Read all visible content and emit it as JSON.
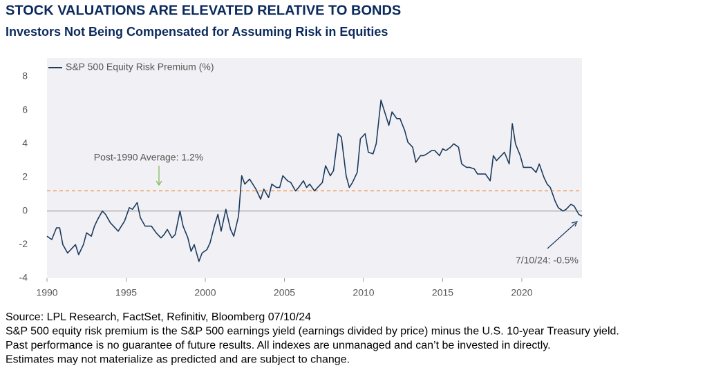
{
  "chart_data": {
    "type": "line",
    "title": "STOCK VALUATIONS ARE ELEVATED RELATIVE TO BONDS",
    "subtitle": "Investors Not Being Compensated for Assuming Risk in Equities",
    "x": [
      1990.0,
      1990.3,
      1990.6,
      1990.8,
      1991.0,
      1991.3,
      1991.6,
      1991.8,
      1992.0,
      1992.3,
      1992.5,
      1992.8,
      1993.0,
      1993.2,
      1993.5,
      1993.7,
      1994.0,
      1994.2,
      1994.5,
      1994.7,
      1994.9,
      1995.2,
      1995.4,
      1995.7,
      1995.9,
      1996.2,
      1996.4,
      1996.6,
      1996.9,
      1997.2,
      1997.4,
      1997.6,
      1997.9,
      1998.1,
      1998.4,
      1998.6,
      1998.9,
      1999.1,
      1999.3,
      1999.6,
      1999.8,
      2000.1,
      2000.3,
      2000.6,
      2000.8,
      2001.0,
      2001.3,
      2001.6,
      2001.8,
      2002.1,
      2002.3,
      2002.5,
      2002.8,
      2003.0,
      2003.2,
      2003.5,
      2003.7,
      2004.0,
      2004.2,
      2004.5,
      2004.7,
      2004.9,
      2005.2,
      2005.4,
      2005.7,
      2005.9,
      2006.2,
      2006.4,
      2006.6,
      2006.9,
      2007.1,
      2007.4,
      2007.6,
      2007.9,
      2008.1,
      2008.4,
      2008.6,
      2008.9,
      2009.1,
      2009.3,
      2009.6,
      2009.8,
      2010.1,
      2010.3,
      2010.6,
      2010.8,
      2011.1,
      2011.3,
      2011.6,
      2011.8,
      2012.1,
      2012.3,
      2012.6,
      2012.8,
      2013.1,
      2013.3,
      2013.6,
      2013.8,
      2014.0,
      2014.3,
      2014.5,
      2014.8,
      2015.0,
      2015.2,
      2015.5,
      2015.7,
      2016.0,
      2016.2,
      2016.5,
      2016.7,
      2017.0,
      2017.2,
      2017.5,
      2017.7,
      2018.0,
      2018.2,
      2018.4,
      2018.7,
      2018.9,
      2019.2,
      2019.4,
      2019.6,
      2019.9,
      2020.1,
      2020.4,
      2020.6,
      2020.9,
      2021.1,
      2021.4,
      2021.6,
      2021.8,
      2022.1,
      2022.3,
      2022.6,
      2022.8,
      2023.1,
      2023.3,
      2023.6,
      2023.8
    ],
    "series": [
      {
        "name": "S&P 500 Equity Risk Premium (%)",
        "color": "#1b3a5c",
        "values": [
          -1.5,
          -1.7,
          -1.0,
          -1.0,
          -2.0,
          -2.5,
          -2.2,
          -2.0,
          -2.6,
          -2.0,
          -1.3,
          -1.5,
          -0.9,
          -0.5,
          0.0,
          -0.2,
          -0.7,
          -0.9,
          -1.2,
          -0.9,
          -0.6,
          0.2,
          0.1,
          0.5,
          -0.4,
          -0.9,
          -0.9,
          -0.9,
          -1.3,
          -1.6,
          -1.4,
          -1.1,
          -1.6,
          -1.4,
          0.0,
          -0.9,
          -1.6,
          -2.4,
          -2.0,
          -3.0,
          -2.5,
          -2.3,
          -1.9,
          -0.8,
          -0.2,
          -1.2,
          0.1,
          -1.1,
          -1.5,
          -0.3,
          2.1,
          1.6,
          1.9,
          1.6,
          1.3,
          0.7,
          1.3,
          0.8,
          1.6,
          1.4,
          1.4,
          2.1,
          1.8,
          1.7,
          1.2,
          1.4,
          1.8,
          1.4,
          1.6,
          1.2,
          1.4,
          1.7,
          2.7,
          2.1,
          2.4,
          4.6,
          4.4,
          2.1,
          1.4,
          1.7,
          2.3,
          4.3,
          4.6,
          3.5,
          3.4,
          4.0,
          6.6,
          6.0,
          5.1,
          5.9,
          5.5,
          5.5,
          4.8,
          4.1,
          3.8,
          2.9,
          3.3,
          3.3,
          3.4,
          3.6,
          3.6,
          3.3,
          3.7,
          3.6,
          3.8,
          4.0,
          3.8,
          2.8,
          2.6,
          2.6,
          2.5,
          2.2,
          2.2,
          2.2,
          1.8,
          3.3,
          3.0,
          3.3,
          3.5,
          2.8,
          5.2,
          4.0,
          3.3,
          2.6,
          2.6,
          2.6,
          2.3,
          2.8,
          2.0,
          1.6,
          1.4,
          0.6,
          0.2,
          0.0,
          0.1,
          0.4,
          0.3,
          -0.2,
          -0.3
        ]
      }
    ],
    "reference_line": {
      "value": 1.2,
      "color": "#f0883a",
      "label": "Post-1990 Average: 1.2%"
    },
    "last_label": "7/10/24: -0.5%",
    "xlim": [
      1990,
      2023.8
    ],
    "xticks": [
      1990,
      1995,
      2000,
      2005,
      2010,
      2015,
      2020
    ],
    "ylim": [
      -4,
      8
    ],
    "yticks": [
      -4,
      -2,
      0,
      2,
      4,
      6,
      8
    ],
    "zero_line": true,
    "footnotes": [
      "Source: LPL Research, FactSet, Refinitiv, Bloomberg 07/10/24",
      "S&P 500 equity risk premium is the S&P 500 earnings yield (earnings divided by price) minus the U.S. 10-year Treasury yield.",
      "Past performance is no guarantee of future results. All indexes are unmanaged and can’t be invested in directly.",
      "Estimates may not materialize as predicted and are subject to change."
    ]
  }
}
